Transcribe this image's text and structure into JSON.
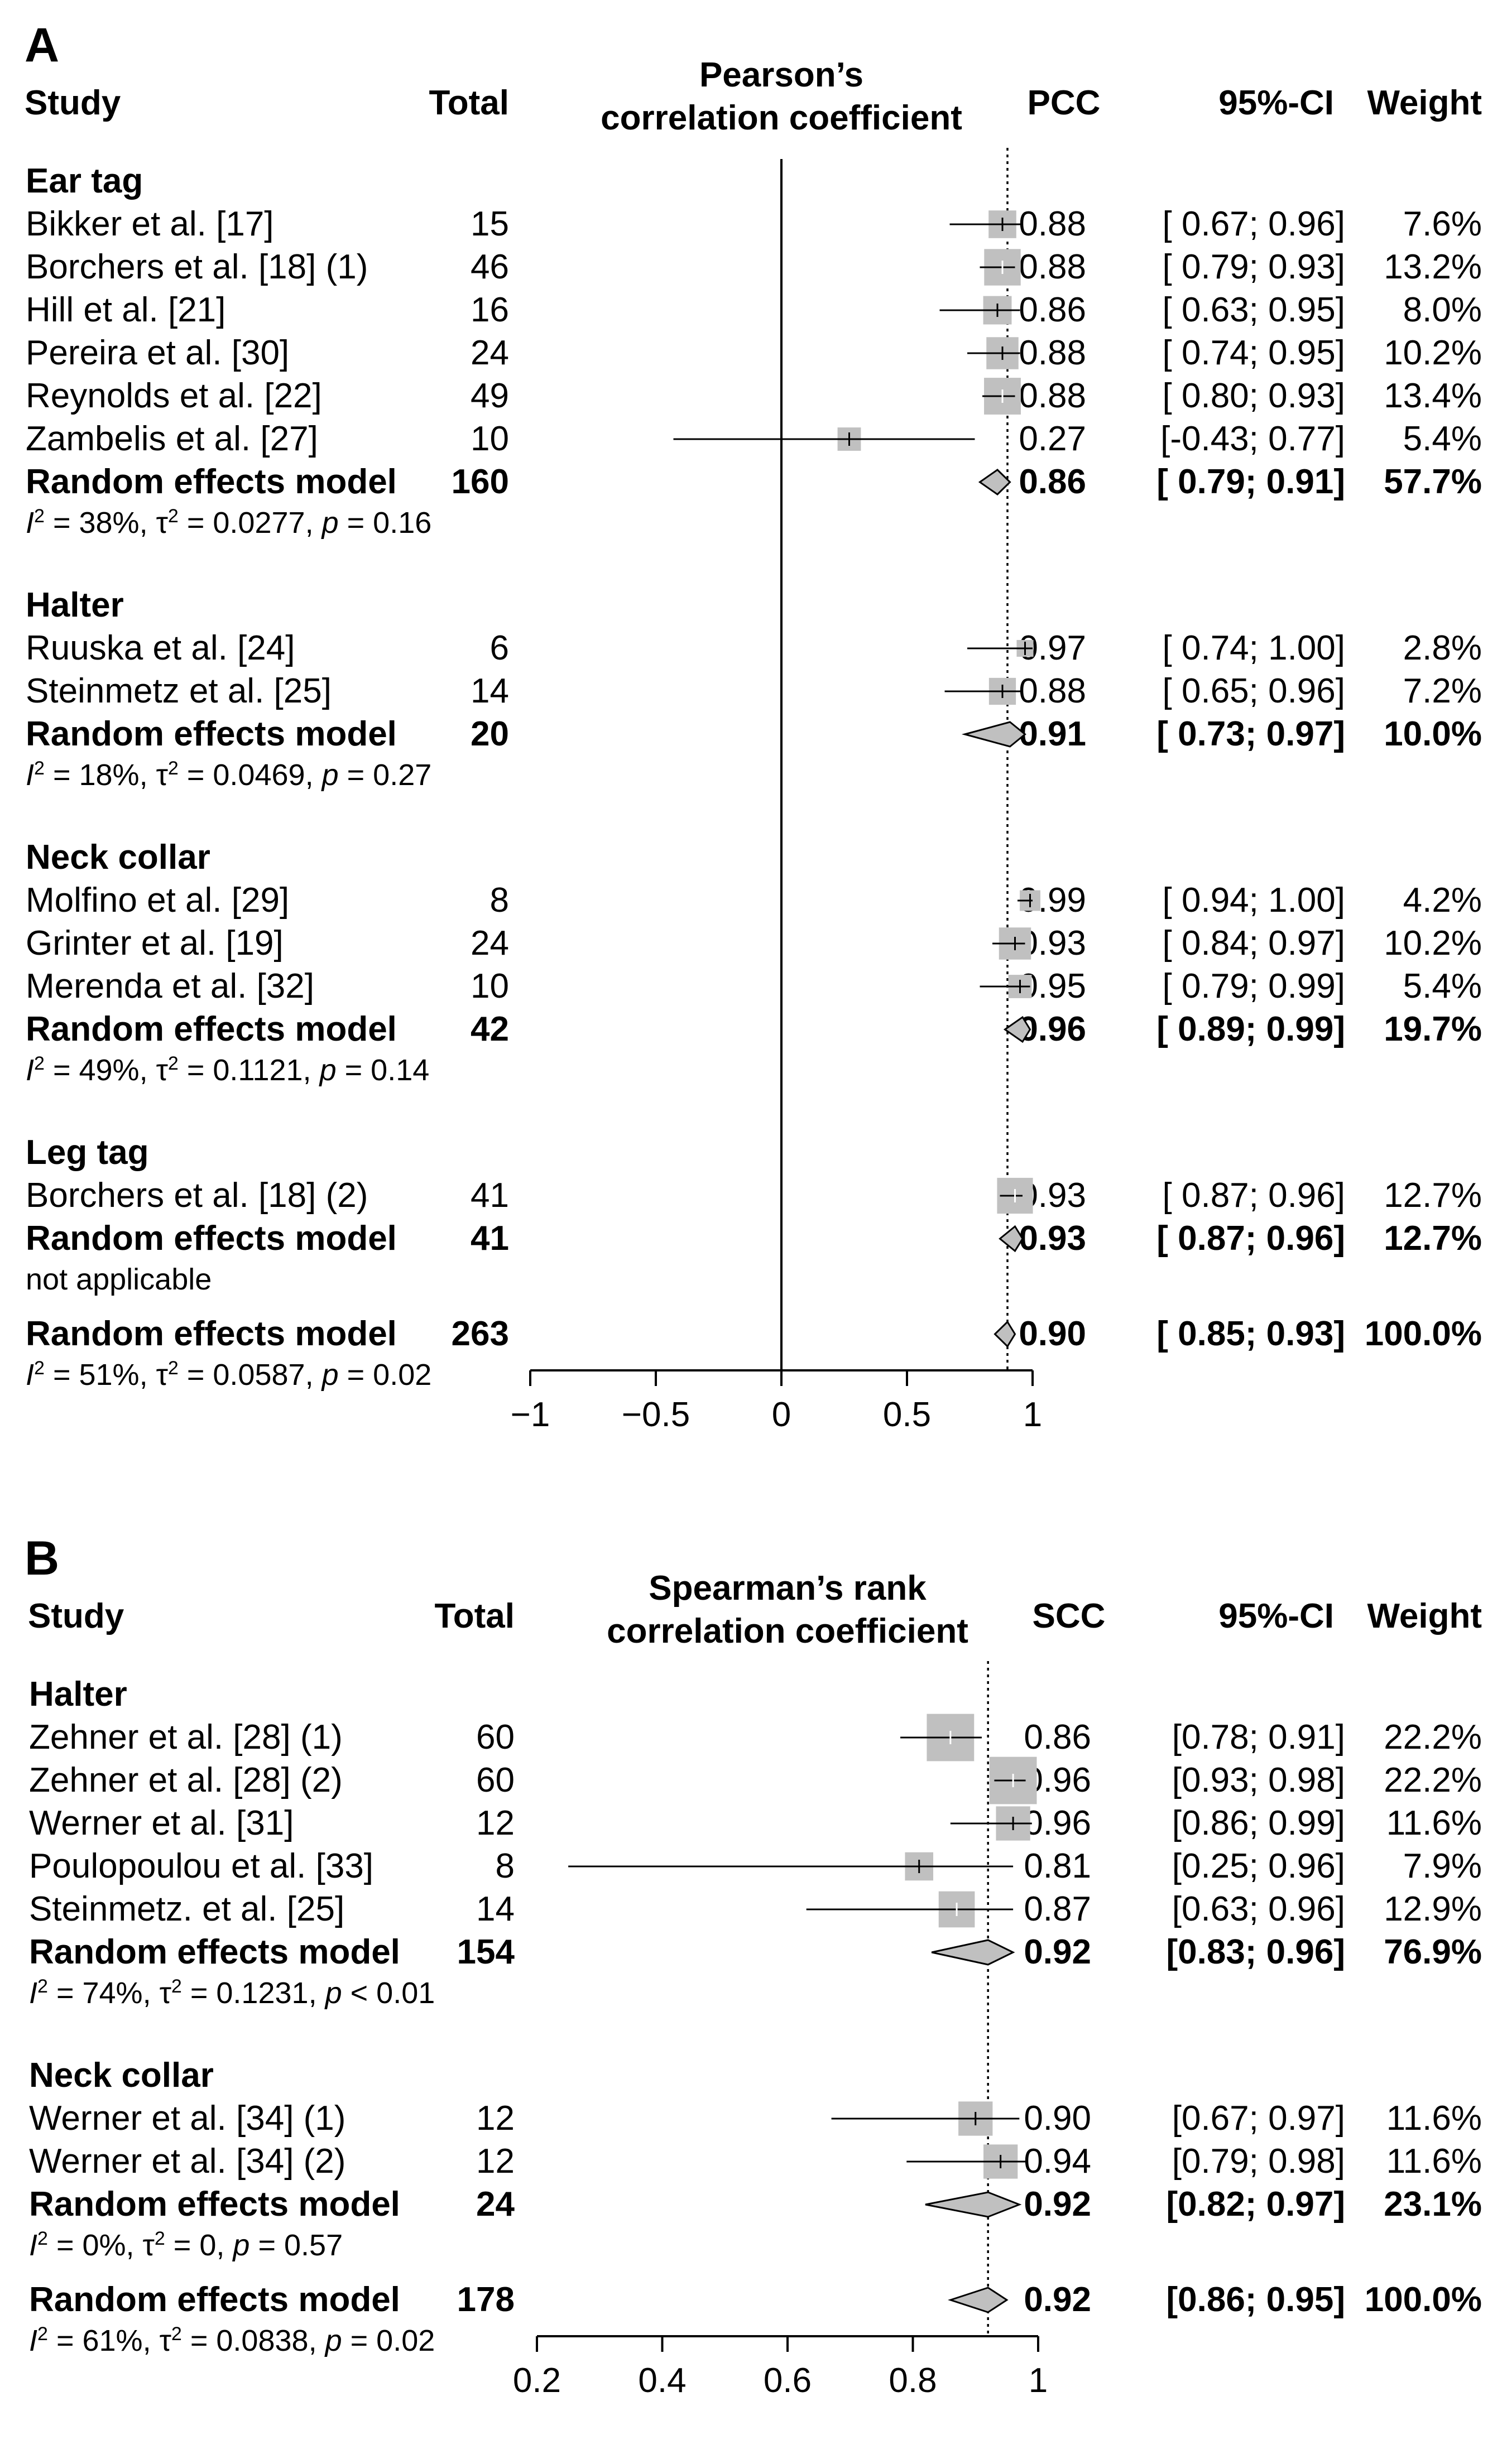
{
  "chart_data": [
    {
      "type": "forest",
      "panel_label": "A",
      "headers": {
        "study": "Study",
        "total": "Total",
        "axis_title": [
          "Pearson’s",
          "correlation coefficient"
        ],
        "effect": "PCC",
        "ci": "95%-CI",
        "weight": "Weight"
      },
      "xlim": [
        -1,
        1
      ],
      "ticks": [
        -1,
        -0.5,
        0,
        0.5,
        1
      ],
      "tick_labels": [
        "−1",
        "−0.5",
        "0",
        "0.5",
        "1"
      ],
      "reference_line": 0,
      "pooled_line": 0.9,
      "groups": [
        {
          "name": "Ear tag",
          "studies": [
            {
              "label": "Bikker et al. [17]",
              "total": "15",
              "est": 0.88,
              "lo": 0.67,
              "hi": 0.96,
              "est_text": "0.88",
              "ci_text": "[ 0.67; 0.96]",
              "weight_text": "7.6%",
              "weight": 7.6
            },
            {
              "label": "Borchers et al. [18] (1)",
              "total": "46",
              "est": 0.88,
              "lo": 0.79,
              "hi": 0.93,
              "est_text": "0.88",
              "ci_text": "[ 0.79; 0.93]",
              "weight_text": "13.2%",
              "weight": 13.2
            },
            {
              "label": "Hill et al. [21]",
              "total": "16",
              "est": 0.86,
              "lo": 0.63,
              "hi": 0.95,
              "est_text": "0.86",
              "ci_text": "[ 0.63; 0.95]",
              "weight_text": "8.0%",
              "weight": 8.0
            },
            {
              "label": "Pereira et al. [30]",
              "total": "24",
              "est": 0.88,
              "lo": 0.74,
              "hi": 0.95,
              "est_text": "0.88",
              "ci_text": "[ 0.74; 0.95]",
              "weight_text": "10.2%",
              "weight": 10.2
            },
            {
              "label": "Reynolds et al. [22]",
              "total": "49",
              "est": 0.88,
              "lo": 0.8,
              "hi": 0.93,
              "est_text": "0.88",
              "ci_text": "[ 0.80; 0.93]",
              "weight_text": "13.4%",
              "weight": 13.4
            },
            {
              "label": "Zambelis et al. [27]",
              "total": "10",
              "est": 0.27,
              "lo": -0.43,
              "hi": 0.77,
              "est_text": "0.27",
              "ci_text": "[-0.43; 0.77]",
              "weight_text": "5.4%",
              "weight": 5.4
            }
          ],
          "pooled": {
            "label": "Random effects model",
            "total": "160",
            "est": 0.86,
            "lo": 0.79,
            "hi": 0.91,
            "est_text": "0.86",
            "ci_text": "[ 0.79; 0.91]",
            "weight_text": "57.7%"
          },
          "het": {
            "i2": "38%",
            "tau2": "0.0277",
            "p": "= 0.16"
          }
        },
        {
          "name": "Halter",
          "studies": [
            {
              "label": "Ruuska et al. [24]",
              "total": "6",
              "est": 0.97,
              "lo": 0.74,
              "hi": 1.0,
              "est_text": "0.97",
              "ci_text": "[ 0.74; 1.00]",
              "weight_text": "2.8%",
              "weight": 2.8
            },
            {
              "label": "Steinmetz et al. [25]",
              "total": "14",
              "est": 0.88,
              "lo": 0.65,
              "hi": 0.96,
              "est_text": "0.88",
              "ci_text": "[ 0.65; 0.96]",
              "weight_text": "7.2%",
              "weight": 7.2
            }
          ],
          "pooled": {
            "label": "Random effects model",
            "total": "20",
            "est": 0.91,
            "lo": 0.73,
            "hi": 0.97,
            "est_text": "0.91",
            "ci_text": "[ 0.73; 0.97]",
            "weight_text": "10.0%"
          },
          "het": {
            "i2": "18%",
            "tau2": "0.0469",
            "p": "= 0.27"
          }
        },
        {
          "name": "Neck collar",
          "studies": [
            {
              "label": "Molfino et al. [29]",
              "total": "8",
              "est": 0.99,
              "lo": 0.94,
              "hi": 1.0,
              "est_text": "0.99",
              "ci_text": "[ 0.94; 1.00]",
              "weight_text": "4.2%",
              "weight": 4.2
            },
            {
              "label": "Grinter et al. [19]",
              "total": "24",
              "est": 0.93,
              "lo": 0.84,
              "hi": 0.97,
              "est_text": "0.93",
              "ci_text": "[ 0.84; 0.97]",
              "weight_text": "10.2%",
              "weight": 10.2
            },
            {
              "label": "Merenda et al. [32]",
              "total": "10",
              "est": 0.95,
              "lo": 0.79,
              "hi": 0.99,
              "est_text": "0.95",
              "ci_text": "[ 0.79; 0.99]",
              "weight_text": "5.4%",
              "weight": 5.4
            }
          ],
          "pooled": {
            "label": "Random effects model",
            "total": "42",
            "est": 0.96,
            "lo": 0.89,
            "hi": 0.99,
            "est_text": "0.96",
            "ci_text": "[ 0.89; 0.99]",
            "weight_text": "19.7%"
          },
          "het": {
            "i2": "49%",
            "tau2": "0.1121",
            "p": "= 0.14"
          }
        },
        {
          "name": "Leg tag",
          "studies": [
            {
              "label": "Borchers et al. [18] (2)",
              "total": "41",
              "est": 0.93,
              "lo": 0.87,
              "hi": 0.96,
              "est_text": "0.93",
              "ci_text": "[ 0.87; 0.96]",
              "weight_text": "12.7%",
              "weight": 12.7
            }
          ],
          "pooled": {
            "label": "Random effects model",
            "total": "41",
            "est": 0.93,
            "lo": 0.87,
            "hi": 0.96,
            "est_text": "0.93",
            "ci_text": "[ 0.87; 0.96]",
            "weight_text": "12.7%"
          },
          "het_text": "not applicable"
        }
      ],
      "overall": {
        "label": "Random effects model",
        "total": "263",
        "est": 0.9,
        "lo": 0.85,
        "hi": 0.93,
        "est_text": "0.90",
        "ci_text": "[ 0.85; 0.93]",
        "weight_text": "100.0%",
        "het": {
          "i2": "51%",
          "tau2": "0.0587",
          "p": "= 0.02"
        }
      }
    },
    {
      "type": "forest",
      "panel_label": "B",
      "headers": {
        "study": "Study",
        "total": "Total",
        "axis_title": [
          "Spearman’s rank",
          "correlation coefficient"
        ],
        "effect": "SCC",
        "ci": "95%-CI",
        "weight": "Weight"
      },
      "xlim": [
        0.2,
        1
      ],
      "ticks": [
        0.2,
        0.4,
        0.6,
        0.8,
        1
      ],
      "tick_labels": [
        "0.2",
        "0.4",
        "0.6",
        "0.8",
        "1"
      ],
      "reference_line": null,
      "pooled_line": 0.92,
      "groups": [
        {
          "name": "Halter",
          "studies": [
            {
              "label": "Zehner et al. [28] (1)",
              "total": "60",
              "est": 0.86,
              "lo": 0.78,
              "hi": 0.91,
              "est_text": "0.86",
              "ci_text": "[0.78; 0.91]",
              "weight_text": "22.2%",
              "weight": 22.2
            },
            {
              "label": "Zehner et al. [28] (2)",
              "total": "60",
              "est": 0.96,
              "lo": 0.93,
              "hi": 0.98,
              "est_text": "0.96",
              "ci_text": "[0.93; 0.98]",
              "weight_text": "22.2%",
              "weight": 22.2
            },
            {
              "label": "Werner et al. [31]",
              "total": "12",
              "est": 0.96,
              "lo": 0.86,
              "hi": 0.99,
              "est_text": "0.96",
              "ci_text": "[0.86; 0.99]",
              "weight_text": "11.6%",
              "weight": 11.6
            },
            {
              "label": "Poulopoulou et al. [33]",
              "total": "8",
              "est": 0.81,
              "lo": 0.25,
              "hi": 0.96,
              "est_text": "0.81",
              "ci_text": "[0.25; 0.96]",
              "weight_text": "7.9%",
              "weight": 7.9
            },
            {
              "label": "Steinmetz. et al. [25]",
              "total": "14",
              "est": 0.87,
              "lo": 0.63,
              "hi": 0.96,
              "est_text": "0.87",
              "ci_text": "[0.63; 0.96]",
              "weight_text": "12.9%",
              "weight": 12.9
            }
          ],
          "pooled": {
            "label": "Random effects model",
            "total": "154",
            "est": 0.92,
            "lo": 0.83,
            "hi": 0.96,
            "est_text": "0.92",
            "ci_text": "[0.83; 0.96]",
            "weight_text": "76.9%"
          },
          "het": {
            "i2": "74%",
            "tau2": "0.1231",
            "p": "< 0.01"
          }
        },
        {
          "name": "Neck collar",
          "studies": [
            {
              "label": "Werner et al. [34] (1)",
              "total": "12",
              "est": 0.9,
              "lo": 0.67,
              "hi": 0.97,
              "est_text": "0.90",
              "ci_text": "[0.67; 0.97]",
              "weight_text": "11.6%",
              "weight": 11.6
            },
            {
              "label": "Werner et al. [34] (2)",
              "total": "12",
              "est": 0.94,
              "lo": 0.79,
              "hi": 0.98,
              "est_text": "0.94",
              "ci_text": "[0.79; 0.98]",
              "weight_text": "11.6%",
              "weight": 11.6
            }
          ],
          "pooled": {
            "label": "Random effects model",
            "total": "24",
            "est": 0.92,
            "lo": 0.82,
            "hi": 0.97,
            "est_text": "0.92",
            "ci_text": "[0.82; 0.97]",
            "weight_text": "23.1%"
          },
          "het": {
            "i2": "0%",
            "tau2": "0",
            "p": "= 0.57"
          }
        }
      ],
      "overall": {
        "label": "Random effects model",
        "total": "178",
        "est": 0.92,
        "lo": 0.86,
        "hi": 0.95,
        "est_text": "0.92",
        "ci_text": "[0.86; 0.95]",
        "weight_text": "100.0%",
        "het": {
          "i2": "61%",
          "tau2": "0.0838",
          "p": "= 0.02"
        }
      }
    }
  ]
}
